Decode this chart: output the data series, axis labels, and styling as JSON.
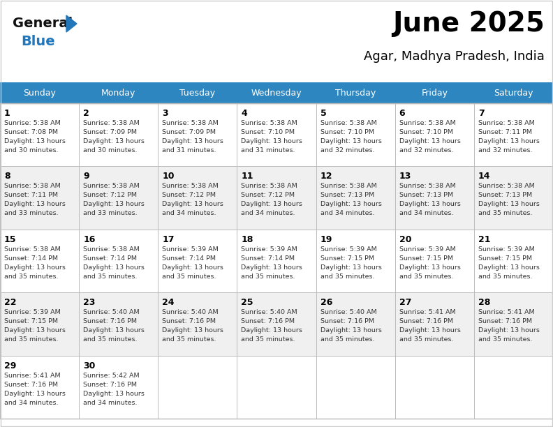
{
  "title": "June 2025",
  "subtitle": "Agar, Madhya Pradesh, India",
  "header_bg": "#2E86C1",
  "header_text_color": "#FFFFFF",
  "cell_bg_white": "#FFFFFF",
  "cell_bg_gray": "#F0F0F0",
  "day_names": [
    "Sunday",
    "Monday",
    "Tuesday",
    "Wednesday",
    "Thursday",
    "Friday",
    "Saturday"
  ],
  "days": [
    {
      "day": 1,
      "row": 0,
      "col": 0,
      "sunrise": "5:38 AM",
      "sunset": "7:08 PM",
      "daylight": "13 hours and 30 minutes."
    },
    {
      "day": 2,
      "row": 0,
      "col": 1,
      "sunrise": "5:38 AM",
      "sunset": "7:09 PM",
      "daylight": "13 hours and 30 minutes."
    },
    {
      "day": 3,
      "row": 0,
      "col": 2,
      "sunrise": "5:38 AM",
      "sunset": "7:09 PM",
      "daylight": "13 hours and 31 minutes."
    },
    {
      "day": 4,
      "row": 0,
      "col": 3,
      "sunrise": "5:38 AM",
      "sunset": "7:10 PM",
      "daylight": "13 hours and 31 minutes."
    },
    {
      "day": 5,
      "row": 0,
      "col": 4,
      "sunrise": "5:38 AM",
      "sunset": "7:10 PM",
      "daylight": "13 hours and 32 minutes."
    },
    {
      "day": 6,
      "row": 0,
      "col": 5,
      "sunrise": "5:38 AM",
      "sunset": "7:10 PM",
      "daylight": "13 hours and 32 minutes."
    },
    {
      "day": 7,
      "row": 0,
      "col": 6,
      "sunrise": "5:38 AM",
      "sunset": "7:11 PM",
      "daylight": "13 hours and 32 minutes."
    },
    {
      "day": 8,
      "row": 1,
      "col": 0,
      "sunrise": "5:38 AM",
      "sunset": "7:11 PM",
      "daylight": "13 hours and 33 minutes."
    },
    {
      "day": 9,
      "row": 1,
      "col": 1,
      "sunrise": "5:38 AM",
      "sunset": "7:12 PM",
      "daylight": "13 hours and 33 minutes."
    },
    {
      "day": 10,
      "row": 1,
      "col": 2,
      "sunrise": "5:38 AM",
      "sunset": "7:12 PM",
      "daylight": "13 hours and 34 minutes."
    },
    {
      "day": 11,
      "row": 1,
      "col": 3,
      "sunrise": "5:38 AM",
      "sunset": "7:12 PM",
      "daylight": "13 hours and 34 minutes."
    },
    {
      "day": 12,
      "row": 1,
      "col": 4,
      "sunrise": "5:38 AM",
      "sunset": "7:13 PM",
      "daylight": "13 hours and 34 minutes."
    },
    {
      "day": 13,
      "row": 1,
      "col": 5,
      "sunrise": "5:38 AM",
      "sunset": "7:13 PM",
      "daylight": "13 hours and 34 minutes."
    },
    {
      "day": 14,
      "row": 1,
      "col": 6,
      "sunrise": "5:38 AM",
      "sunset": "7:13 PM",
      "daylight": "13 hours and 35 minutes."
    },
    {
      "day": 15,
      "row": 2,
      "col": 0,
      "sunrise": "5:38 AM",
      "sunset": "7:14 PM",
      "daylight": "13 hours and 35 minutes."
    },
    {
      "day": 16,
      "row": 2,
      "col": 1,
      "sunrise": "5:38 AM",
      "sunset": "7:14 PM",
      "daylight": "13 hours and 35 minutes."
    },
    {
      "day": 17,
      "row": 2,
      "col": 2,
      "sunrise": "5:39 AM",
      "sunset": "7:14 PM",
      "daylight": "13 hours and 35 minutes."
    },
    {
      "day": 18,
      "row": 2,
      "col": 3,
      "sunrise": "5:39 AM",
      "sunset": "7:14 PM",
      "daylight": "13 hours and 35 minutes."
    },
    {
      "day": 19,
      "row": 2,
      "col": 4,
      "sunrise": "5:39 AM",
      "sunset": "7:15 PM",
      "daylight": "13 hours and 35 minutes."
    },
    {
      "day": 20,
      "row": 2,
      "col": 5,
      "sunrise": "5:39 AM",
      "sunset": "7:15 PM",
      "daylight": "13 hours and 35 minutes."
    },
    {
      "day": 21,
      "row": 2,
      "col": 6,
      "sunrise": "5:39 AM",
      "sunset": "7:15 PM",
      "daylight": "13 hours and 35 minutes."
    },
    {
      "day": 22,
      "row": 3,
      "col": 0,
      "sunrise": "5:39 AM",
      "sunset": "7:15 PM",
      "daylight": "13 hours and 35 minutes."
    },
    {
      "day": 23,
      "row": 3,
      "col": 1,
      "sunrise": "5:40 AM",
      "sunset": "7:16 PM",
      "daylight": "13 hours and 35 minutes."
    },
    {
      "day": 24,
      "row": 3,
      "col": 2,
      "sunrise": "5:40 AM",
      "sunset": "7:16 PM",
      "daylight": "13 hours and 35 minutes."
    },
    {
      "day": 25,
      "row": 3,
      "col": 3,
      "sunrise": "5:40 AM",
      "sunset": "7:16 PM",
      "daylight": "13 hours and 35 minutes."
    },
    {
      "day": 26,
      "row": 3,
      "col": 4,
      "sunrise": "5:40 AM",
      "sunset": "7:16 PM",
      "daylight": "13 hours and 35 minutes."
    },
    {
      "day": 27,
      "row": 3,
      "col": 5,
      "sunrise": "5:41 AM",
      "sunset": "7:16 PM",
      "daylight": "13 hours and 35 minutes."
    },
    {
      "day": 28,
      "row": 3,
      "col": 6,
      "sunrise": "5:41 AM",
      "sunset": "7:16 PM",
      "daylight": "13 hours and 35 minutes."
    },
    {
      "day": 29,
      "row": 4,
      "col": 0,
      "sunrise": "5:41 AM",
      "sunset": "7:16 PM",
      "daylight": "13 hours and 34 minutes."
    },
    {
      "day": 30,
      "row": 4,
      "col": 1,
      "sunrise": "5:42 AM",
      "sunset": "7:16 PM",
      "daylight": "13 hours and 34 minutes."
    }
  ],
  "bg_color": "#FFFFFF",
  "text_color": "#000000",
  "cell_text_color": "#333333",
  "grid_color": "#BBBBBB",
  "logo_general_color": "#111111",
  "logo_blue_color": "#2277BB",
  "logo_triangle_color": "#2277BB"
}
